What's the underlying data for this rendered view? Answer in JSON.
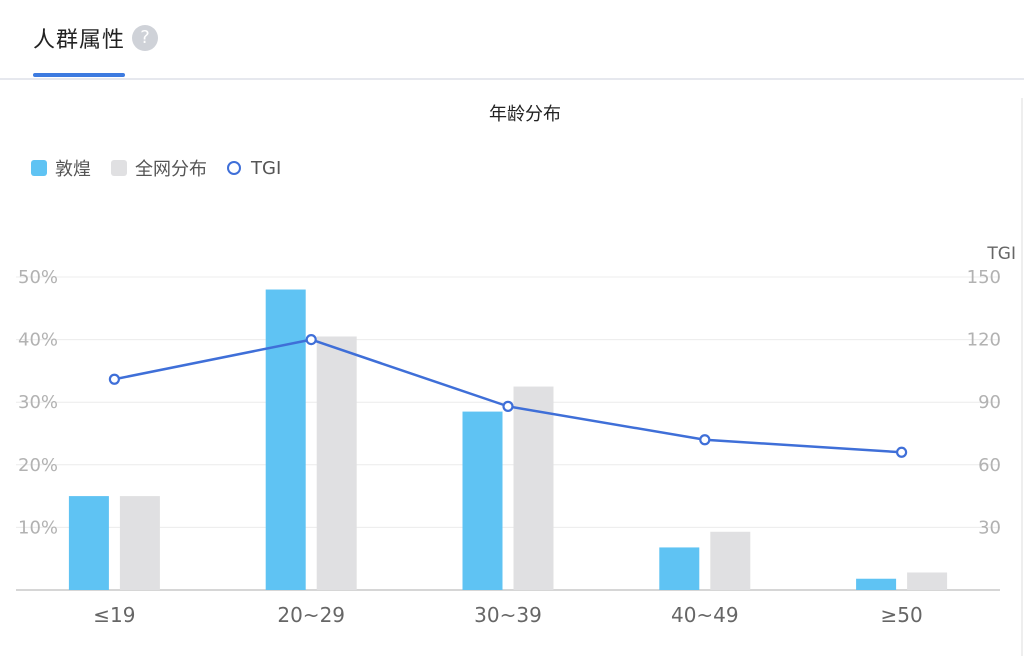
{
  "tab": {
    "title": "人群属性",
    "help_glyph": "?"
  },
  "chart_data": {
    "type": "bar",
    "title": "年龄分布",
    "categories": [
      "≤19",
      "20~29",
      "30~39",
      "40~49",
      "≥50"
    ],
    "series": [
      {
        "name": "敦煌",
        "type": "bar",
        "axis": "left",
        "color": "#5fc3f3",
        "values": [
          15,
          48,
          28.5,
          6.8,
          1.8
        ]
      },
      {
        "name": "全网分布",
        "type": "bar",
        "axis": "left",
        "color": "#e0e0e2",
        "values": [
          15,
          40.5,
          32.5,
          9.3,
          2.8
        ]
      },
      {
        "name": "TGI",
        "type": "line",
        "axis": "right",
        "color": "#3f6fd8",
        "values": [
          101,
          120,
          88,
          72,
          66
        ]
      }
    ],
    "y_left": {
      "min": 0,
      "max": 50,
      "ticks": [
        10,
        20,
        30,
        40,
        50
      ],
      "tick_labels": [
        "10%",
        "20%",
        "30%",
        "40%",
        "50%"
      ]
    },
    "y_right": {
      "label": "TGI",
      "min": 0,
      "max": 150,
      "ticks": [
        30,
        60,
        90,
        120,
        150
      ],
      "tick_labels": [
        "30",
        "60",
        "90",
        "120",
        "150"
      ]
    },
    "legend_position": "top-left",
    "grid": true
  }
}
